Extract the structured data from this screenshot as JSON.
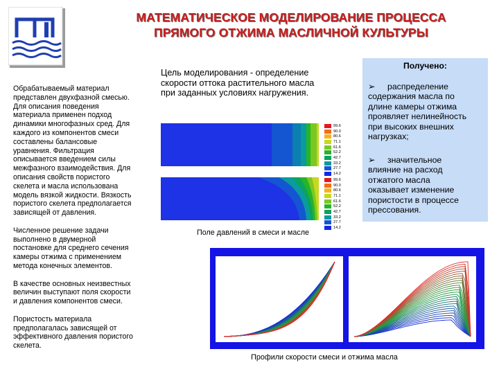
{
  "title": {
    "line1": "МАТЕМАТИЧЕСКОЕ МОДЕЛИРОВАНИЕ ПРОЦЕССА",
    "line2": "ПРЯМОГО ОТЖИМА МАСЛИЧНОЙ КУЛЬТУРЫ"
  },
  "left_text": {
    "p1": [
      "Обрабатываемый материал",
      "представлен двухфазной смесью.",
      "Для описания поведения",
      "материала применен подход",
      "динамики многофазных сред. Для",
      "каждого из компонентов смеси",
      "составлены балансовые",
      "уравнения. Фильтрация",
      "описывается введением силы",
      "межфазного взаимодействия. Для",
      "описания свойств пористого",
      "скелета и масла использована",
      "модель вязкой жидкости. Вязкость",
      "пористого скелета предполагается",
      "зависящей от давления."
    ],
    "p2": [
      "Численное решение задачи",
      "выполнено в двумерной",
      "постановке для среднего сечения",
      "камеры отжима с применением",
      "метода конечных элементов."
    ],
    "p3": [
      "В качестве основных неизвестных",
      "величин выступают поля скорости",
      "и давления компонентов смеси."
    ],
    "p4": [
      "Пористость материала",
      "предполагалась зависящей от",
      "эффективного давления пористого",
      "скелета."
    ]
  },
  "goal": [
    "Цель моделирования - определение",
    "скорости оттока растительного масла",
    "при заданных условиях нагружения."
  ],
  "result": {
    "title": "Получено:",
    "bullet": "➢",
    "item1": [
      "распределение",
      "содержания масла по",
      "длине камеры отжима",
      "проявляет нелинейность",
      "при высоких внешних",
      "нагрузках;"
    ],
    "item2": [
      "значительное",
      "влияние на расход",
      "отжатого масла",
      "оказывает изменение",
      "пористости в процессе",
      "прессования."
    ]
  },
  "legend": {
    "levels": [
      "99.6",
      "90.0",
      "80.6",
      "71.1",
      "61.6",
      "52.2",
      "42.7",
      "33.2",
      "27.7",
      "14.2"
    ],
    "colors": [
      "#e31a1c",
      "#f46d1a",
      "#f7b21b",
      "#c8d81e",
      "#7cc823",
      "#26b428",
      "#0ca35e",
      "#0a9aa0",
      "#1456d2",
      "#1428e6"
    ]
  },
  "captions": {
    "pressure": "Поле давлений в смеси и масле",
    "profiles": "Профили скорости смеси и отжима масла"
  }
}
